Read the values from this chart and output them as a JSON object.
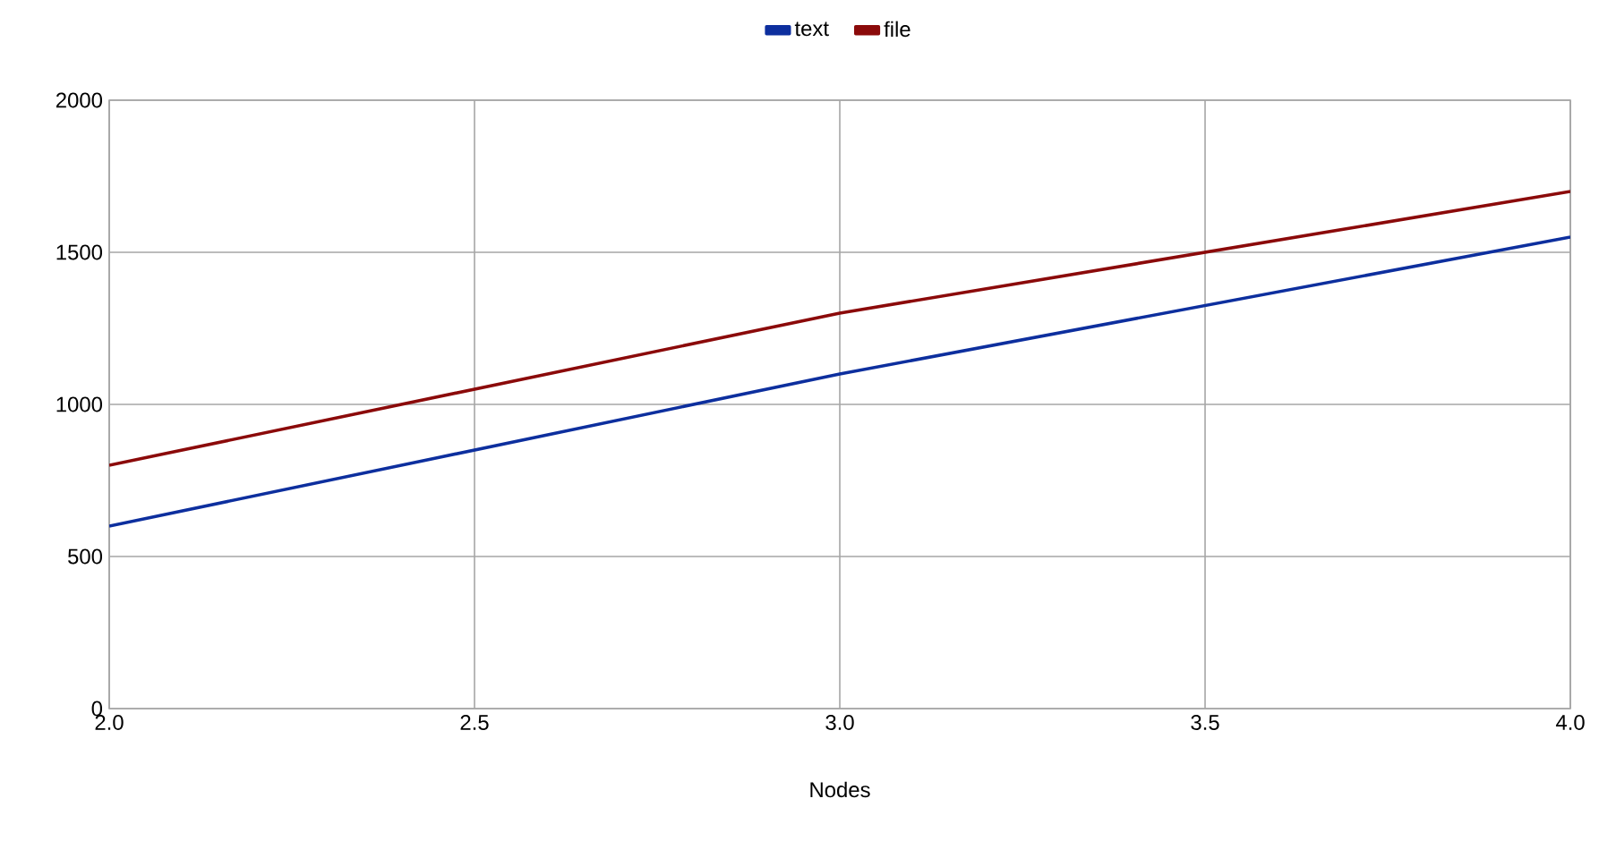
{
  "chart_data": {
    "type": "line",
    "xlabel": "Nodes",
    "x": [
      2,
      3,
      4
    ],
    "series": [
      {
        "name": "text",
        "color": "#0d2f9e",
        "values": [
          600,
          1100,
          1550
        ]
      },
      {
        "name": "file",
        "color": "#8b0a0a",
        "values": [
          800,
          1300,
          1700
        ]
      }
    ],
    "xlim": [
      2,
      4
    ],
    "ylim": [
      0,
      2000
    ],
    "xticks": [
      {
        "value": 2,
        "label": "2.0"
      },
      {
        "value": 2.5,
        "label": "2.5"
      },
      {
        "value": 3,
        "label": "3.0"
      },
      {
        "value": 3.5,
        "label": "3.5"
      },
      {
        "value": 4,
        "label": "4.0"
      }
    ],
    "yticks": [
      0,
      500,
      1000,
      1500,
      2000
    ],
    "grid": true,
    "legend": "top",
    "marker": "none",
    "line_style": "solid"
  }
}
